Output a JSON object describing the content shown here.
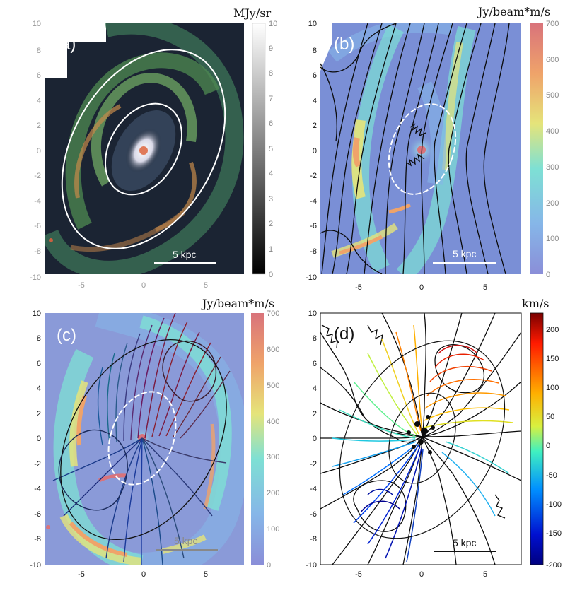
{
  "panels": [
    {
      "id": "a",
      "label": "(a)",
      "colorbar_unit": "MJy/sr",
      "colorbar_ticks": [
        "10",
        "9",
        "8",
        "7",
        "6",
        "5",
        "4",
        "3",
        "2",
        "1",
        "0"
      ],
      "colormap": "grayscale",
      "scale_bar": "5 kpc",
      "x_ticks": [
        "-5",
        "0",
        "5"
      ],
      "y_ticks": [
        "10",
        "8",
        "6",
        "4",
        "2",
        "0",
        "-2",
        "-4",
        "-6",
        "-8",
        "-10"
      ]
    },
    {
      "id": "b",
      "label": "(b)",
      "colorbar_unit": "Jy/beam*m/s",
      "colorbar_ticks": [
        "700",
        "600",
        "500",
        "400",
        "300",
        "200",
        "100",
        "0"
      ],
      "colormap": "jet-pastel",
      "scale_bar": "5 kpc",
      "x_ticks": [
        "-5",
        "0",
        "5"
      ],
      "y_ticks": [
        "10",
        "8",
        "6",
        "4",
        "2",
        "0",
        "-2",
        "-4",
        "-6",
        "-8",
        "-10"
      ]
    },
    {
      "id": "c",
      "label": "(c)",
      "colorbar_unit": "Jy/beam*m/s",
      "colorbar_ticks": [
        "700",
        "600",
        "500",
        "400",
        "300",
        "200",
        "100",
        "0"
      ],
      "colormap": "jet-pastel",
      "scale_bar": "5 kpc",
      "x_ticks": [
        "-5",
        "0",
        "5"
      ],
      "y_ticks": [
        "10",
        "8",
        "6",
        "4",
        "2",
        "0",
        "-2",
        "-4",
        "-6",
        "-8",
        "-10"
      ]
    },
    {
      "id": "d",
      "label": "(d)",
      "colorbar_unit": "km/s",
      "colorbar_ticks": [
        "200",
        "150",
        "100",
        "50",
        "0",
        "-50",
        "-100",
        "-150",
        "-200"
      ],
      "colormap": "jet",
      "scale_bar": "5 kpc",
      "x_ticks": [
        "-5",
        "0",
        "5"
      ],
      "y_ticks": [
        "10",
        "8",
        "6",
        "4",
        "2",
        "0",
        "-2",
        "-4",
        "-6",
        "-8",
        "-10"
      ]
    }
  ],
  "colors": {
    "galaxy_bg": "#1b2433",
    "map_bg": "#7a8fd6",
    "arm": "#e6d66a",
    "ellipse": "#ffffff",
    "contour": "#0b0b0b"
  }
}
